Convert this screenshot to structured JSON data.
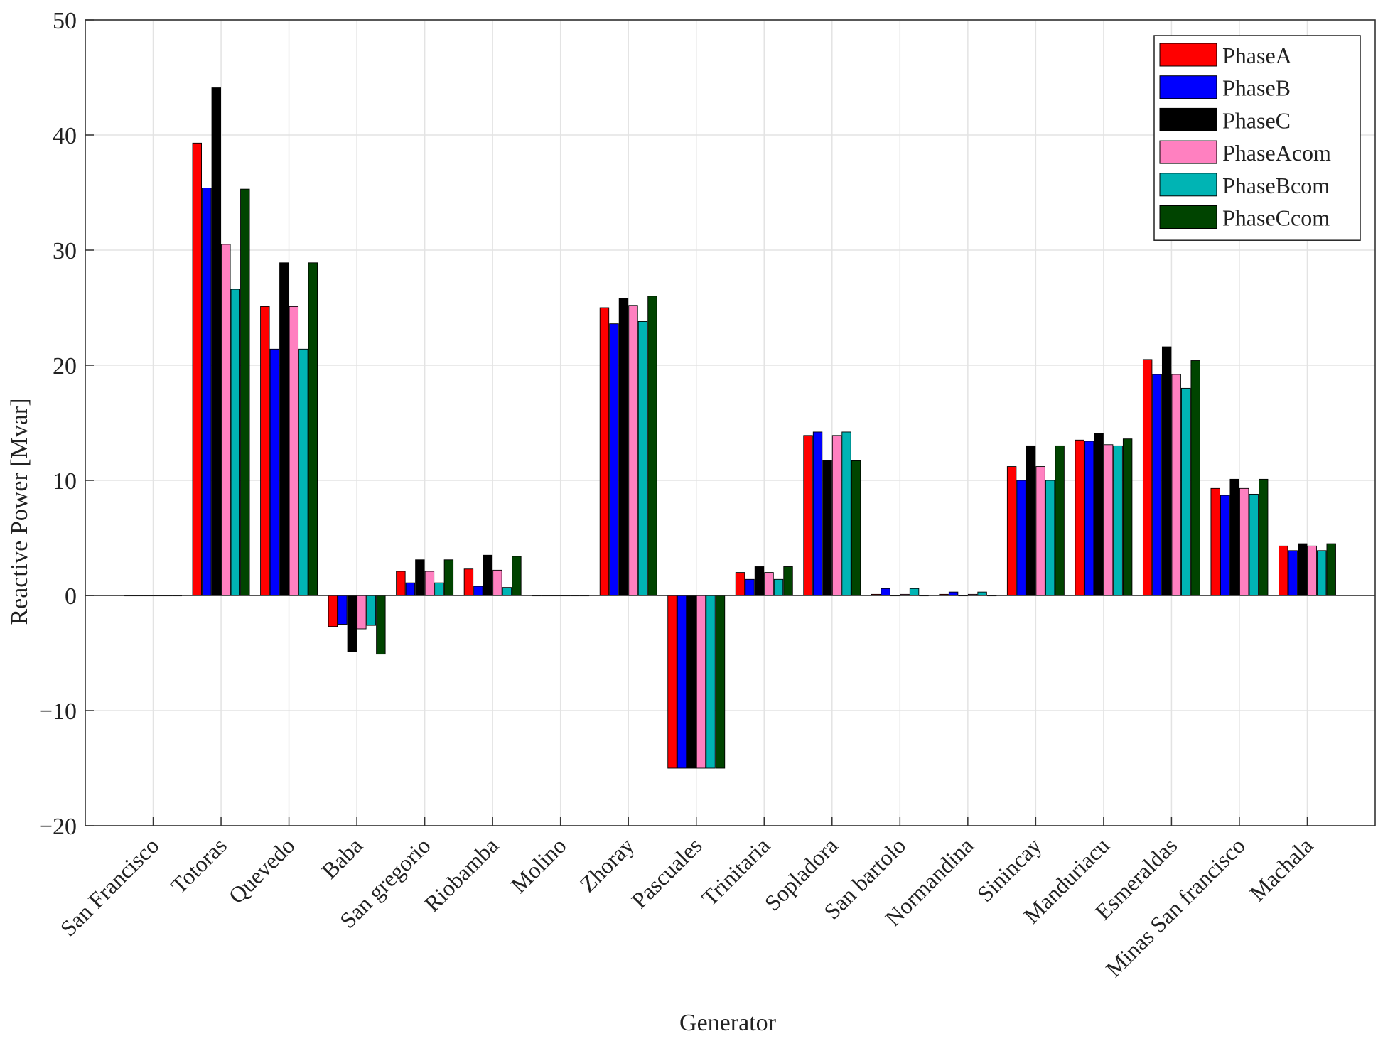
{
  "chart_data": {
    "type": "bar",
    "title": "",
    "xlabel": "Generator",
    "ylabel": "Reactive Power [Mvar]",
    "ylim": [
      -20,
      50
    ],
    "yticks": [
      -20,
      -10,
      0,
      10,
      20,
      30,
      40,
      50
    ],
    "ytick_labels": [
      "−20",
      "−10",
      "0",
      "10",
      "20",
      "30",
      "40",
      "50"
    ],
    "grid": true,
    "legend_position": "top-right",
    "categories": [
      "San Francisco",
      "Totoras",
      "Quevedo",
      "Baba",
      "San gregorio",
      "Riobamba",
      "Molino",
      "Zhoray",
      "Pascuales",
      "Trinitaria",
      "Sopladora",
      "San bartolo",
      "Normandina",
      "Sinincay",
      "Manduriacu",
      "Esmeraldas",
      "Minas San francisco",
      "Machala"
    ],
    "series": [
      {
        "name": "PhaseA",
        "color": "#ff0000",
        "values": [
          0,
          39.3,
          25.1,
          -2.7,
          2.1,
          2.3,
          0,
          25.0,
          -15.0,
          2.0,
          13.9,
          0.1,
          0.1,
          11.2,
          13.5,
          20.5,
          9.3,
          4.3
        ]
      },
      {
        "name": "PhaseB",
        "color": "#0000ff",
        "values": [
          0,
          35.4,
          21.4,
          -2.5,
          1.1,
          0.8,
          0,
          23.6,
          -15.0,
          1.4,
          14.2,
          0.6,
          0.3,
          10.0,
          13.4,
          19.2,
          8.7,
          3.9
        ]
      },
      {
        "name": "PhaseC",
        "color": "#000000",
        "values": [
          0,
          44.1,
          28.9,
          -4.9,
          3.1,
          3.5,
          0,
          25.8,
          -15.0,
          2.5,
          11.7,
          0.0,
          0.0,
          13.0,
          14.1,
          21.6,
          10.1,
          4.5
        ]
      },
      {
        "name": "PhaseAcom",
        "color": "#ff80c0",
        "values": [
          0,
          30.5,
          25.1,
          -2.9,
          2.1,
          2.2,
          0,
          25.2,
          -15.0,
          2.0,
          13.9,
          0.1,
          0.1,
          11.2,
          13.1,
          19.2,
          9.3,
          4.3
        ]
      },
      {
        "name": "PhaseBcom",
        "color": "#00b4b4",
        "values": [
          0,
          26.6,
          21.4,
          -2.6,
          1.1,
          0.7,
          0,
          23.8,
          -15.0,
          1.4,
          14.2,
          0.6,
          0.3,
          10.0,
          13.0,
          18.0,
          8.8,
          3.9
        ]
      },
      {
        "name": "PhaseCcom",
        "color": "#004400",
        "values": [
          0,
          35.3,
          28.9,
          -5.1,
          3.1,
          3.4,
          0,
          26.0,
          -15.0,
          2.5,
          11.7,
          0.0,
          0.0,
          13.0,
          13.6,
          20.4,
          10.1,
          4.5
        ]
      }
    ]
  }
}
